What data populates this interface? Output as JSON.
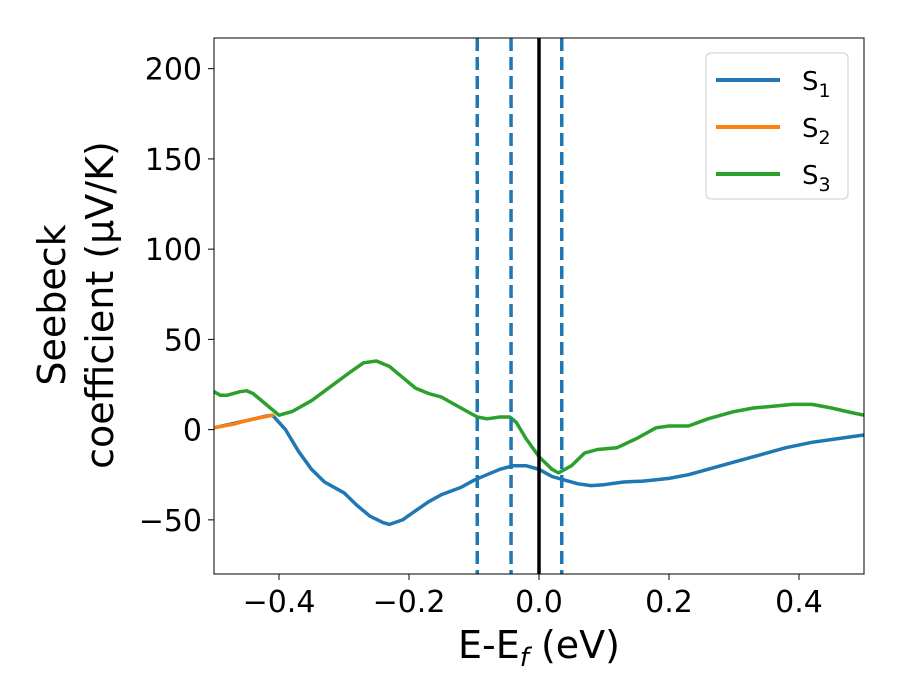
{
  "chart_data": {
    "type": "line",
    "xlabel": {
      "main": "E-E",
      "sub": "f",
      "unit": " (eV)"
    },
    "ylabel": {
      "line1": "Seebeck",
      "line2": "coefficient  (μV/K)"
    },
    "xlim": [
      -0.5,
      0.5
    ],
    "ylim": [
      -80,
      217
    ],
    "x_ticks": [
      -0.4,
      -0.2,
      0.0,
      0.2,
      0.4
    ],
    "x_tick_labels": [
      "−0.4",
      "−0.2",
      "0.0",
      "0.2",
      "0.4"
    ],
    "y_ticks": [
      -50,
      0,
      50,
      100,
      150,
      200
    ],
    "y_tick_labels": [
      "−50",
      "0",
      "50",
      "100",
      "150",
      "200"
    ],
    "grid": false,
    "legend_position": "top-right",
    "vlines": [
      {
        "x": -0.095,
        "style": "dashed",
        "color": "#1f77b4"
      },
      {
        "x": -0.043,
        "style": "dashed",
        "color": "#1f77b4"
      },
      {
        "x": 0.035,
        "style": "dashed",
        "color": "#1f77b4"
      },
      {
        "x": 0.0,
        "style": "solid",
        "color": "#000000"
      }
    ],
    "series": [
      {
        "name": "S",
        "sub": "1",
        "color": "#1f77b4",
        "x": [
          -0.5,
          -0.45,
          -0.42,
          -0.41,
          -0.39,
          -0.37,
          -0.35,
          -0.33,
          -0.3,
          -0.28,
          -0.26,
          -0.24,
          -0.23,
          -0.21,
          -0.19,
          -0.17,
          -0.15,
          -0.12,
          -0.1,
          -0.08,
          -0.06,
          -0.04,
          -0.02,
          0.0,
          0.02,
          0.04,
          0.06,
          0.08,
          0.1,
          0.13,
          0.16,
          0.2,
          0.23,
          0.26,
          0.3,
          0.34,
          0.38,
          0.42,
          0.46,
          0.5
        ],
        "y": [
          1,
          5,
          7.5,
          8,
          0,
          -12,
          -22,
          -29,
          -35,
          -42,
          -48,
          -51.5,
          -52.5,
          -50,
          -45,
          -40,
          -36,
          -32,
          -28,
          -25,
          -22,
          -20,
          -20,
          -22,
          -26,
          -28,
          -30,
          -31,
          -30.5,
          -29,
          -28.5,
          -27,
          -25,
          -22,
          -18,
          -14,
          -10,
          -7,
          -5,
          -3
        ]
      },
      {
        "name": "S",
        "sub": "2",
        "color": "#ff7f0e",
        "x": [
          -0.5,
          -0.47,
          -0.45,
          -0.43,
          -0.41
        ],
        "y": [
          1,
          3,
          5,
          6.5,
          8
        ]
      },
      {
        "name": "S",
        "sub": "3",
        "color": "#2ca02c",
        "x": [
          -0.5,
          -0.49,
          -0.48,
          -0.46,
          -0.45,
          -0.44,
          -0.42,
          -0.4,
          -0.38,
          -0.35,
          -0.32,
          -0.29,
          -0.27,
          -0.25,
          -0.23,
          -0.21,
          -0.19,
          -0.17,
          -0.15,
          -0.13,
          -0.11,
          -0.095,
          -0.08,
          -0.06,
          -0.045,
          -0.035,
          -0.02,
          0.0,
          0.02,
          0.03,
          0.05,
          0.07,
          0.09,
          0.12,
          0.15,
          0.18,
          0.2,
          0.23,
          0.26,
          0.3,
          0.33,
          0.36,
          0.39,
          0.42,
          0.45,
          0.48,
          0.5
        ],
        "y": [
          21,
          19,
          19,
          21,
          21.5,
          20,
          14,
          8,
          10,
          16,
          24,
          32,
          37,
          38,
          35,
          29,
          23,
          20,
          18,
          14,
          10,
          7,
          6,
          7,
          7,
          4,
          -5,
          -15,
          -22,
          -24,
          -20,
          -13,
          -11,
          -10,
          -5,
          1,
          2,
          2,
          6,
          10,
          12,
          13,
          14,
          14,
          12,
          9.5,
          8
        ]
      }
    ]
  }
}
